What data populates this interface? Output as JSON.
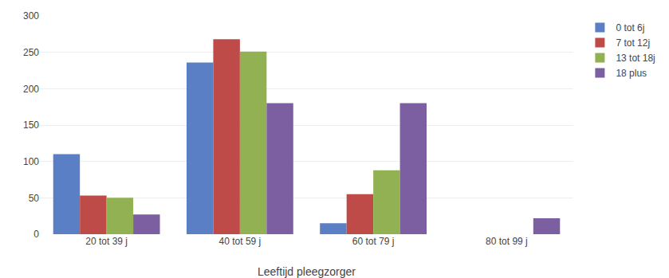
{
  "chart_data": {
    "type": "bar",
    "xlabel": "Leeftijd pleegzorger",
    "categories": [
      "20 tot 39 j",
      "40 tot 59 j",
      "60 tot 79 j",
      "80 tot 99 j"
    ],
    "series": [
      {
        "name": "0 tot 6j",
        "color": "#5b7fc4",
        "values": [
          110,
          236,
          15,
          0
        ]
      },
      {
        "name": "7 tot 12j",
        "color": "#be4b48",
        "values": [
          53,
          268,
          55,
          0
        ]
      },
      {
        "name": "13 tot 18j",
        "color": "#92b153",
        "values": [
          50,
          251,
          88,
          0
        ]
      },
      {
        "name": "18 plus",
        "color": "#7c5fa0",
        "values": [
          27,
          180,
          180,
          22
        ]
      }
    ],
    "ylim": [
      0,
      300
    ],
    "yticks": [
      0,
      50,
      100,
      150,
      200,
      250,
      300
    ],
    "grid": true,
    "legend": "upper right"
  }
}
